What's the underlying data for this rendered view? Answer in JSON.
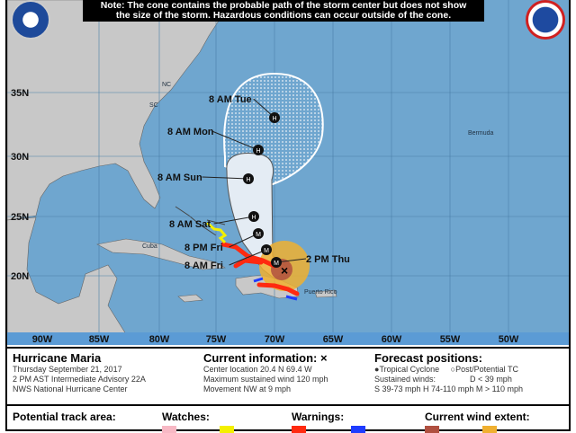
{
  "note": {
    "line1": "Note: The cone contains the probable path of the storm center but does not show",
    "line2": "the size of the storm. Hazardous conditions can occur outside of the cone."
  },
  "map": {
    "lat_labels": [
      "35N",
      "30N",
      "25N",
      "20N"
    ],
    "lon_labels": [
      "90W",
      "85W",
      "80W",
      "75W",
      "70W",
      "65W",
      "60W",
      "55W",
      "50W"
    ],
    "place_labels": {
      "bermuda": "Bermuda",
      "cuba": "Cuba",
      "nc": "NC",
      "sc": "SC",
      "puerto_rico": "Puerto Rico"
    },
    "forecast_points": [
      {
        "label": "8 AM Tue",
        "symbol": "H"
      },
      {
        "label": "8 AM Mon",
        "symbol": "H"
      },
      {
        "label": "8 AM Sun",
        "symbol": "H"
      },
      {
        "label": "8 AM Sat",
        "symbol": "H"
      },
      {
        "label": "8 PM Fri",
        "symbol": "M"
      },
      {
        "label": "8 AM Fri",
        "symbol": "M"
      },
      {
        "label": "2 PM Thu",
        "symbol": "M"
      }
    ],
    "colors": {
      "ocean": "#6fa6cf",
      "land": "#c8c8c8",
      "cone": "#e4ecf4",
      "hurricane_warning": "#ff2a10",
      "tropical_storm_watch": "#f4f000",
      "tropical_storm_warning": "#1f3cff",
      "hurricane_wind": "#b05040",
      "ts_wind": "#f0b030"
    }
  },
  "info": {
    "storm_name": "Hurricane Maria",
    "date": "Thursday September 21, 2017",
    "advisory": "2 PM AST Intermediate Advisory 22A",
    "center": "NWS National Hurricane Center",
    "current_title": "Current information: ×",
    "location": "Center location 20.4 N 69.4 W",
    "max_wind": "Maximum sustained wind 120 mph",
    "movement": "Movement NW at 9 mph",
    "forecast_title": "Forecast positions:",
    "tropical_cyclone": "Tropical Cyclone",
    "post_tc": "Post/Potential TC",
    "sustained": "Sustained winds:",
    "d": "D < 39 mph",
    "shm": "S 39-73 mph  H 74-110 mph  M > 110 mph"
  },
  "legend": {
    "track": "Potential track area:",
    "watches": "Watches:",
    "warnings": "Warnings:",
    "wind": "Current wind extent:"
  }
}
